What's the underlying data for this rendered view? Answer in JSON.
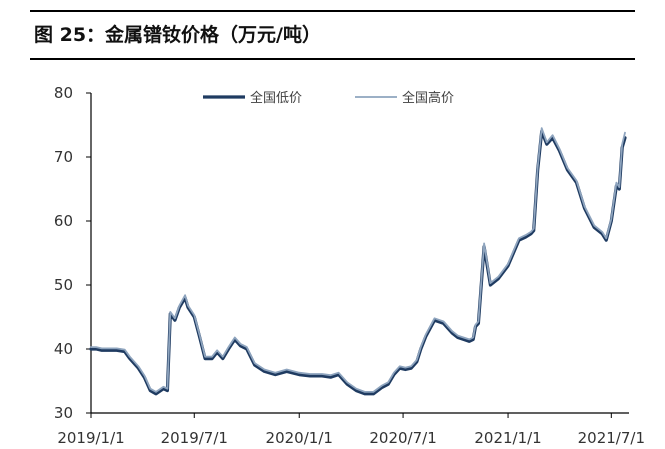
{
  "figure": {
    "title": "图 25：金属镨钕价格（万元/吨）"
  },
  "chart_data": {
    "type": "line",
    "title": "图 25：金属镨钕价格（万元/吨）",
    "xlabel": "",
    "ylabel": "",
    "ylim": [
      30,
      80
    ],
    "yticks": [
      30,
      40,
      50,
      60,
      70,
      80
    ],
    "xlim": [
      "2019-01-01",
      "2021-08-01"
    ],
    "xticks": [
      {
        "date": "2019-01-01",
        "label": "2019/1/1"
      },
      {
        "date": "2019-07-01",
        "label": "2019/7/1"
      },
      {
        "date": "2020-01-01",
        "label": "2020/1/1"
      },
      {
        "date": "2020-07-01",
        "label": "2020/7/1"
      },
      {
        "date": "2021-01-01",
        "label": "2021/1/1"
      },
      {
        "date": "2021-07-01",
        "label": "2021/7/1"
      }
    ],
    "legend": "top-center",
    "grid": false,
    "x": [
      "2019-01-01",
      "2019-01-10",
      "2019-01-20",
      "2019-02-15",
      "2019-03-01",
      "2019-03-10",
      "2019-03-25",
      "2019-04-05",
      "2019-04-15",
      "2019-04-25",
      "2019-05-08",
      "2019-05-15",
      "2019-05-20",
      "2019-05-28",
      "2019-06-05",
      "2019-06-15",
      "2019-06-20",
      "2019-07-01",
      "2019-07-10",
      "2019-07-20",
      "2019-08-01",
      "2019-08-10",
      "2019-08-20",
      "2019-08-30",
      "2019-09-10",
      "2019-09-20",
      "2019-10-01",
      "2019-10-15",
      "2019-11-01",
      "2019-11-20",
      "2019-12-10",
      "2020-01-01",
      "2020-01-20",
      "2020-02-10",
      "2020-02-25",
      "2020-03-10",
      "2020-03-25",
      "2020-04-10",
      "2020-04-25",
      "2020-05-10",
      "2020-05-25",
      "2020-06-05",
      "2020-06-15",
      "2020-06-25",
      "2020-07-05",
      "2020-07-15",
      "2020-07-25",
      "2020-08-01",
      "2020-08-10",
      "2020-08-25",
      "2020-09-10",
      "2020-09-25",
      "2020-10-05",
      "2020-10-15",
      "2020-10-25",
      "2020-11-01",
      "2020-11-05",
      "2020-11-10",
      "2020-11-20",
      "2020-12-01",
      "2020-12-15",
      "2021-01-01",
      "2021-01-20",
      "2021-02-01",
      "2021-02-10",
      "2021-02-15",
      "2021-02-22",
      "2021-03-01",
      "2021-03-10",
      "2021-03-20",
      "2021-04-01",
      "2021-04-15",
      "2021-05-01",
      "2021-05-15",
      "2021-06-01",
      "2021-06-15",
      "2021-06-22",
      "2021-07-01",
      "2021-07-10",
      "2021-07-15",
      "2021-07-20",
      "2021-07-25"
    ],
    "series": [
      {
        "name": "全国低价",
        "color": "#1f3b61",
        "width": 3.2,
        "values": [
          40,
          40,
          39.8,
          39.8,
          39.6,
          38.5,
          37,
          35.5,
          33.5,
          33,
          33.8,
          33.5,
          45.5,
          44.5,
          46.5,
          48,
          46.5,
          45,
          42,
          38.5,
          38.5,
          39.5,
          38.5,
          40,
          41.5,
          40.5,
          40,
          37.5,
          36.5,
          36,
          36.5,
          36,
          35.8,
          35.8,
          35.6,
          36,
          34.5,
          33.5,
          33,
          33,
          34,
          34.5,
          36,
          37,
          36.8,
          37,
          38,
          40,
          42,
          44.5,
          44,
          42.5,
          41.8,
          41.5,
          41.2,
          41.5,
          43.5,
          44,
          56,
          50,
          51,
          53,
          57,
          57.5,
          58,
          58.5,
          68,
          74,
          72,
          73,
          71,
          68,
          66,
          62,
          59,
          58,
          57,
          60,
          65.5,
          65,
          71.5,
          73
        ]
      },
      {
        "name": "全国高价",
        "color": "#8ea4be",
        "width": 1.8,
        "values": [
          40.3,
          40.3,
          40.1,
          40.1,
          39.9,
          38.8,
          37.3,
          35.8,
          33.8,
          33.3,
          34.1,
          33.8,
          45.8,
          44.8,
          46.8,
          48.4,
          46.8,
          45.3,
          42.3,
          38.8,
          38.8,
          39.8,
          38.8,
          40.3,
          41.8,
          40.8,
          40.3,
          37.8,
          36.8,
          36.3,
          36.8,
          36.3,
          36.1,
          36.1,
          35.9,
          36.3,
          34.8,
          33.8,
          33.3,
          33.3,
          34.3,
          34.8,
          36.3,
          37.3,
          37.1,
          37.3,
          38.3,
          40.3,
          42.3,
          44.8,
          44.3,
          42.8,
          42.1,
          41.8,
          41.5,
          41.8,
          43.8,
          44.3,
          56.5,
          50.3,
          51.3,
          53.3,
          57.3,
          57.8,
          58.3,
          58.8,
          68.4,
          74.5,
          72.3,
          73.4,
          71.3,
          68.3,
          66.3,
          62.3,
          59.3,
          58.3,
          57.3,
          60.3,
          66,
          65.3,
          72,
          73.8
        ]
      }
    ]
  }
}
